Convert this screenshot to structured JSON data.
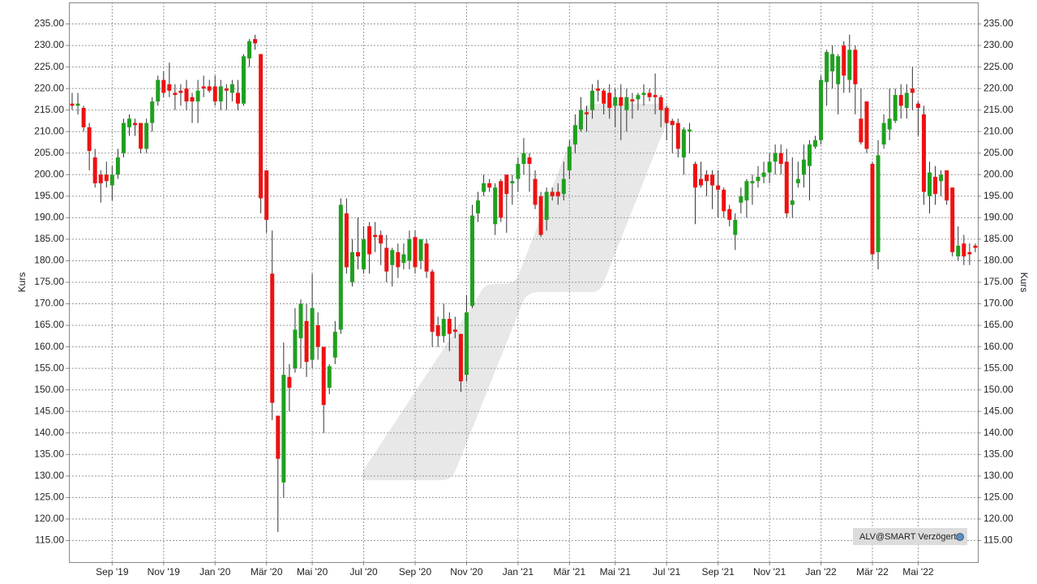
{
  "chart_data": {
    "type": "candlestick",
    "y_label": "Kurs",
    "source_note": "ALV@SMART Verzögert",
    "up_color": "#1fa01f",
    "down_color": "#ee1111",
    "wick_color": "#333333",
    "grid": true,
    "ylim": [
      110,
      240
    ],
    "yticks": [
      {
        "value": 115,
        "label": "115.00"
      },
      {
        "value": 120,
        "label": "120.00"
      },
      {
        "value": 125,
        "label": "125.00"
      },
      {
        "value": 130,
        "label": "130.00"
      },
      {
        "value": 135,
        "label": "135.00"
      },
      {
        "value": 140,
        "label": "140.00"
      },
      {
        "value": 145,
        "label": "145.00"
      },
      {
        "value": 150,
        "label": "150.00"
      },
      {
        "value": 155,
        "label": "155.00"
      },
      {
        "value": 160,
        "label": "160.00"
      },
      {
        "value": 165,
        "label": "165.00"
      },
      {
        "value": 170,
        "label": "170.00"
      },
      {
        "value": 175,
        "label": "175.00"
      },
      {
        "value": 180,
        "label": "180.00"
      },
      {
        "value": 185,
        "label": "185.00"
      },
      {
        "value": 190,
        "label": "190.00"
      },
      {
        "value": 195,
        "label": "195.00"
      },
      {
        "value": 200,
        "label": "200.00"
      },
      {
        "value": 205,
        "label": "205.00"
      },
      {
        "value": 210,
        "label": "210.00"
      },
      {
        "value": 215,
        "label": "215.00"
      },
      {
        "value": 220,
        "label": "220.00"
      },
      {
        "value": 225,
        "label": "225.00"
      },
      {
        "value": 230,
        "label": "230.00"
      },
      {
        "value": 235,
        "label": "235.00"
      }
    ],
    "categories": [
      null,
      null,
      null,
      null,
      null,
      null,
      null,
      "Sep '19",
      null,
      null,
      null,
      null,
      null,
      null,
      null,
      null,
      "Nov '19",
      null,
      null,
      null,
      null,
      null,
      null,
      null,
      null,
      "Jan '20",
      null,
      null,
      null,
      null,
      null,
      null,
      null,
      null,
      "Mär '20",
      null,
      null,
      null,
      null,
      null,
      null,
      null,
      "Mai '20",
      null,
      null,
      null,
      null,
      null,
      null,
      null,
      null,
      "Jul '20",
      null,
      null,
      null,
      null,
      null,
      null,
      null,
      null,
      "Sep '20",
      null,
      null,
      null,
      null,
      null,
      null,
      null,
      null,
      "Nov '20",
      null,
      null,
      null,
      null,
      null,
      null,
      null,
      null,
      "Jan '21",
      null,
      null,
      null,
      null,
      null,
      null,
      null,
      null,
      "Mär '21",
      null,
      null,
      null,
      null,
      null,
      null,
      null,
      "Mai '21",
      null,
      null,
      null,
      null,
      null,
      null,
      null,
      null,
      "Jul '21",
      null,
      null,
      null,
      null,
      null,
      null,
      null,
      null,
      "Sep '21",
      null,
      null,
      null,
      null,
      null,
      null,
      null,
      null,
      "Nov '21",
      null,
      null,
      null,
      null,
      null,
      null,
      null,
      null,
      "Jan '22",
      null,
      null,
      null,
      null,
      null,
      null,
      null,
      null,
      "Mär '22",
      null,
      null,
      null,
      null,
      null,
      null,
      null,
      "Mai '22",
      null,
      null,
      null,
      null,
      null,
      null,
      null,
      null,
      null,
      null
    ],
    "open": [
      216.5,
      216,
      215.5,
      211,
      204,
      200,
      200,
      197.5,
      200,
      205,
      211,
      212,
      212,
      206,
      212,
      217,
      222,
      221,
      219,
      219.5,
      220,
      218,
      217,
      220.5,
      220.5,
      220.5,
      217,
      220,
      219,
      219,
      216.5,
      227,
      231.5,
      228,
      201,
      177,
      144,
      128.5,
      153,
      155,
      162,
      166,
      157,
      165,
      160,
      150.5,
      157.5,
      164,
      191,
      175,
      182,
      178,
      188,
      186,
      186,
      183,
      179,
      182,
      179.5,
      180,
      185.5,
      180,
      184,
      177.5,
      165,
      162.5,
      166.5,
      164,
      163,
      153.5,
      169.5,
      191,
      196,
      198,
      188.5,
      198.5,
      200,
      198,
      199,
      202.5,
      204,
      199,
      195,
      189.5,
      196,
      196,
      195.5,
      201,
      207,
      210.5,
      214.5,
      215,
      220,
      219.5,
      219,
      216,
      218,
      215,
      217.5,
      217.5,
      218.5,
      219,
      218.5,
      218,
      215.5,
      212.5,
      212,
      204,
      210,
      202.5,
      199,
      200,
      200,
      197.5,
      196.5,
      192,
      186,
      193.5,
      194,
      198,
      198.5,
      199.5,
      200.5,
      203,
      205,
      203,
      193,
      198,
      200,
      202,
      206.5,
      208,
      221.5,
      224,
      221,
      230,
      222,
      229,
      213,
      217,
      202.5,
      182,
      207,
      210.5,
      212.5,
      218.5,
      215.5,
      220,
      216.5,
      214,
      195,
      199.5,
      198.5,
      201,
      197,
      181,
      184,
      182,
      183.5
    ],
    "high": [
      219,
      219,
      216,
      212,
      206,
      201,
      203,
      202,
      206,
      213,
      214,
      213,
      212,
      213,
      218,
      223,
      224,
      226,
      221,
      221,
      222,
      219,
      222,
      223,
      222,
      223,
      222,
      221,
      222,
      222,
      228,
      231.5,
      232.5,
      228,
      201,
      187,
      144,
      161,
      156,
      169,
      171,
      170,
      177,
      168,
      160,
      156,
      166,
      194.5,
      194.5,
      185,
      190,
      188,
      189,
      189,
      187,
      186,
      183,
      184,
      184,
      187,
      187,
      185,
      185,
      178,
      167,
      170,
      168,
      167,
      163,
      172,
      193,
      196,
      200,
      199,
      198,
      199,
      200,
      200,
      204,
      208.5,
      205,
      201,
      196,
      197,
      197,
      198,
      203,
      208,
      214,
      218,
      216,
      221,
      222,
      220,
      221,
      220,
      221,
      220,
      219,
      219,
      221,
      220,
      223.5,
      218.5,
      216,
      213,
      213,
      211,
      212,
      203,
      203,
      201,
      201,
      201,
      197,
      193,
      191,
      197,
      199,
      200,
      202,
      203,
      205,
      207,
      207,
      206,
      204,
      203,
      207,
      208,
      209,
      223,
      229,
      230,
      228,
      231,
      232.5,
      230,
      220,
      217,
      203,
      208,
      214,
      220,
      220,
      221,
      221,
      225,
      217,
      216,
      203,
      202,
      201,
      201,
      197,
      188,
      186,
      184,
      184
    ],
    "low": [
      215,
      214,
      210,
      201,
      197,
      193.5,
      197,
      194,
      199,
      204,
      209,
      209,
      205,
      205,
      210,
      216,
      218,
      218,
      215,
      216,
      215,
      212,
      212,
      218,
      219,
      216,
      215,
      215,
      217,
      215,
      216,
      225,
      229,
      191,
      186.5,
      143,
      117,
      125,
      145,
      154,
      155,
      153,
      155,
      157,
      140,
      149,
      156,
      163,
      177,
      174,
      178,
      177,
      177,
      182,
      179,
      175,
      174,
      176,
      178,
      178,
      177,
      178,
      176,
      160,
      160,
      161,
      159,
      162,
      149.5,
      152,
      169,
      189,
      195,
      196,
      186,
      189,
      186.5,
      193,
      196,
      200,
      196,
      192,
      185.5,
      187,
      194,
      193,
      194,
      199,
      205,
      210,
      210,
      213,
      217,
      214,
      213,
      211,
      208,
      210,
      213,
      215,
      216,
      217,
      214,
      211,
      208,
      205,
      204,
      200,
      205,
      188.5,
      197,
      195,
      192,
      190,
      190,
      188,
      182.5,
      191,
      190,
      193,
      197,
      198,
      198,
      200,
      200,
      190,
      190,
      197,
      197,
      194,
      206,
      207,
      216,
      220,
      214,
      219,
      219,
      214,
      207,
      205,
      180,
      178,
      206,
      208,
      212,
      213,
      213,
      215,
      209,
      193,
      191,
      193,
      195,
      193,
      181,
      180,
      179,
      179,
      182
    ],
    "close": [
      216,
      216.5,
      211,
      205.5,
      198,
      198,
      198.5,
      200,
      204,
      212,
      213,
      211.5,
      206,
      212,
      217,
      222,
      219,
      219.5,
      218.5,
      219,
      217,
      217,
      219.5,
      220,
      219.5,
      217,
      220.5,
      219.5,
      221,
      216.5,
      227.5,
      231,
      230.5,
      194.5,
      189.5,
      147,
      134,
      153.5,
      150.5,
      164,
      170,
      156.5,
      169,
      160,
      146.5,
      155.5,
      163.5,
      193,
      178.5,
      182,
      181,
      185,
      181.5,
      185.5,
      184,
      177.5,
      182.5,
      178.5,
      181.5,
      185,
      178.5,
      185,
      177.5,
      163.5,
      162.5,
      166.5,
      163,
      163.5,
      152,
      168,
      190.5,
      194,
      198,
      197,
      197,
      190,
      195.5,
      198.5,
      202.5,
      205,
      202.5,
      193,
      186,
      196,
      195,
      195,
      199,
      206.5,
      211.5,
      215,
      214,
      219.5,
      219.5,
      216.5,
      215.5,
      218,
      216,
      218,
      217,
      218.5,
      219,
      218,
      218,
      215,
      212,
      211.5,
      206,
      210.5,
      210.5,
      197,
      197.5,
      198.5,
      197.5,
      196.5,
      191.5,
      189.5,
      189.5,
      195,
      198.5,
      198.5,
      199.5,
      200.5,
      203,
      205,
      202.5,
      191,
      194,
      199,
      203.5,
      207,
      208,
      222,
      228.5,
      228,
      227.5,
      223,
      229,
      221,
      207.5,
      206,
      181.5,
      204.5,
      212,
      213,
      218.5,
      216,
      219,
      219,
      215.5,
      196,
      200.5,
      195.5,
      200,
      194,
      182,
      183.5,
      181,
      181.5,
      183
    ]
  }
}
